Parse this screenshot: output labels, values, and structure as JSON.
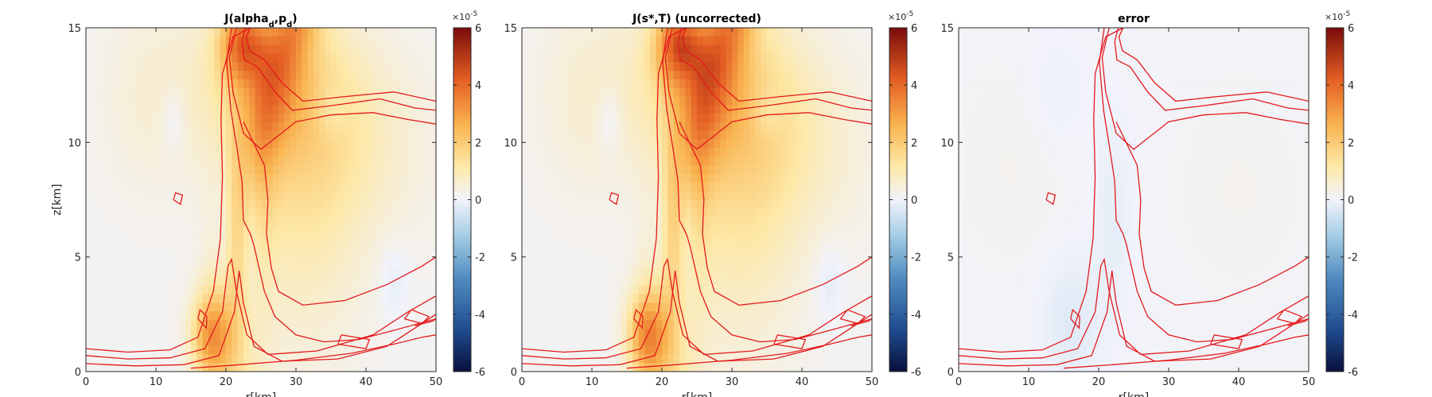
{
  "chart_data": [
    {
      "type": "heatmap",
      "title": "J(alpha_d,p_d)",
      "title_parts": [
        "J(alpha",
        "d",
        ",p",
        "d",
        ")"
      ],
      "xlabel": "r[km]",
      "ylabel": "z[km]",
      "xlim": [
        0,
        50
      ],
      "ylim": [
        0,
        15
      ],
      "xticks": [
        0,
        10,
        20,
        30,
        40,
        50
      ],
      "yticks": [
        0,
        5,
        10,
        15
      ],
      "colorbar": {
        "ticks": [
          -6,
          -4,
          -2,
          0,
          2,
          4,
          6
        ],
        "multiplier": "×10",
        "exponent": "-5",
        "range": [
          -6,
          6
        ]
      },
      "field_strength": 1.0
    },
    {
      "type": "heatmap",
      "title": "J(s*,T) (uncorrected)",
      "xlabel": "r[km]",
      "ylabel": "",
      "xlim": [
        0,
        50
      ],
      "ylim": [
        0,
        15
      ],
      "xticks": [
        0,
        10,
        20,
        30,
        40,
        50
      ],
      "yticks": [
        0,
        5,
        10,
        15
      ],
      "colorbar": {
        "ticks": [
          -6,
          -4,
          -2,
          0,
          2,
          4,
          6
        ],
        "multiplier": "×10",
        "exponent": "-5",
        "range": [
          -6,
          6
        ]
      },
      "field_strength": 1.08
    },
    {
      "type": "heatmap",
      "title": "error",
      "xlabel": "r[km]",
      "ylabel": "",
      "xlim": [
        0,
        50
      ],
      "ylim": [
        0,
        15
      ],
      "xticks": [
        0,
        10,
        20,
        30,
        40,
        50
      ],
      "yticks": [
        0,
        5,
        10,
        15
      ],
      "colorbar": {
        "ticks": [
          -6,
          -4,
          -2,
          0,
          2,
          4,
          6
        ],
        "multiplier": "×10",
        "exponent": "-5",
        "range": [
          -6,
          6
        ]
      },
      "field_strength": 0.08
    }
  ],
  "contours": {
    "color": "#e31a1c",
    "curves": [
      [
        [
          0,
          1.0
        ],
        [
          6,
          0.85
        ],
        [
          12,
          0.95
        ],
        [
          16,
          1.5
        ],
        [
          18.2,
          3.5
        ],
        [
          19.2,
          5.8
        ],
        [
          19.5,
          8.5
        ],
        [
          19.3,
          11
        ],
        [
          19.5,
          13
        ],
        [
          21,
          14.6
        ],
        [
          23.5,
          15
        ]
      ],
      [
        [
          0,
          0.7
        ],
        [
          6,
          0.55
        ],
        [
          12,
          0.6
        ],
        [
          17,
          1.0
        ],
        [
          19.5,
          2.6
        ],
        [
          20.3,
          4.6
        ],
        [
          20.8,
          4.9
        ],
        [
          21.5,
          3.5
        ],
        [
          23,
          1.6
        ],
        [
          26,
          0.75
        ],
        [
          33,
          0.9
        ],
        [
          41,
          1.6
        ],
        [
          46,
          2.6
        ],
        [
          50,
          3.3
        ]
      ],
      [
        [
          0,
          0.35
        ],
        [
          7,
          0.25
        ],
        [
          14,
          0.3
        ],
        [
          19,
          0.7
        ],
        [
          21.2,
          2.6
        ],
        [
          21.9,
          4.4
        ],
        [
          22.5,
          3.0
        ],
        [
          24,
          1.1
        ],
        [
          28,
          0.45
        ],
        [
          36,
          0.55
        ],
        [
          43,
          1.1
        ],
        [
          47,
          1.9
        ],
        [
          50,
          2.5
        ]
      ],
      [
        [
          21.5,
          15
        ],
        [
          20.5,
          13.7
        ],
        [
          21,
          12.2
        ],
        [
          22.5,
          10.4
        ],
        [
          25,
          9.7
        ],
        [
          27.5,
          10.3
        ],
        [
          30,
          10.9
        ],
        [
          35,
          11.2
        ],
        [
          41,
          11.3
        ],
        [
          46,
          11.0
        ],
        [
          50,
          10.8
        ]
      ],
      [
        [
          20.8,
          15
        ],
        [
          20.1,
          13.5
        ],
        [
          20.7,
          11.4
        ],
        [
          21.6,
          9.7
        ],
        [
          22.3,
          8.3
        ],
        [
          22.5,
          6.6
        ],
        [
          23.5,
          6
        ],
        [
          24,
          5.5
        ],
        [
          25.5,
          3.5
        ],
        [
          27,
          2.4
        ],
        [
          30,
          1.6
        ],
        [
          34,
          1.3
        ],
        [
          39,
          1.4
        ],
        [
          44,
          1.8
        ],
        [
          50,
          2.3
        ]
      ],
      [
        [
          22.8,
          15
        ],
        [
          22.3,
          14.4
        ],
        [
          22.6,
          13.6
        ],
        [
          24.5,
          13.3
        ],
        [
          27,
          12.2
        ],
        [
          29.5,
          11.4
        ],
        [
          35,
          11.6
        ],
        [
          42,
          11.9
        ],
        [
          47,
          11.5
        ],
        [
          50,
          11.4
        ]
      ],
      [
        [
          23.5,
          15
        ],
        [
          22.9,
          14.6
        ],
        [
          23.4,
          14
        ],
        [
          25.5,
          13.6
        ],
        [
          28,
          12.6
        ],
        [
          31,
          11.8
        ],
        [
          37,
          12.0
        ],
        [
          44,
          12.2
        ],
        [
          50,
          11.8
        ]
      ],
      [
        [
          22.5,
          10.9
        ],
        [
          25.5,
          9
        ],
        [
          26,
          7.5
        ],
        [
          25.8,
          6
        ],
        [
          26.5,
          4.5
        ],
        [
          27.5,
          3.5
        ],
        [
          31,
          2.9
        ],
        [
          37,
          3.1
        ],
        [
          43,
          3.8
        ],
        [
          48,
          4.6
        ],
        [
          50,
          5
        ]
      ],
      [
        [
          15,
          0.15
        ],
        [
          22,
          0.3
        ],
        [
          30,
          0.5
        ],
        [
          38,
          0.8
        ],
        [
          44,
          1.2
        ],
        [
          48,
          1.5
        ],
        [
          50,
          1.6
        ]
      ],
      [
        [
          47,
          2
        ],
        [
          49.5,
          2.2
        ],
        [
          50,
          2.3
        ]
      ]
    ],
    "islands": [
      [
        [
          12.5,
          7.5
        ],
        [
          13.5,
          7.3
        ],
        [
          13.8,
          7.7
        ],
        [
          12.8,
          7.8
        ],
        [
          12.5,
          7.5
        ]
      ],
      [
        [
          16,
          2.3
        ],
        [
          17.2,
          1.9
        ],
        [
          17.3,
          2.4
        ],
        [
          16.3,
          2.7
        ],
        [
          16,
          2.3
        ]
      ],
      [
        [
          36,
          1.2
        ],
        [
          40,
          1.0
        ],
        [
          40.5,
          1.4
        ],
        [
          36.5,
          1.6
        ],
        [
          36,
          1.2
        ]
      ],
      [
        [
          45.5,
          2.3
        ],
        [
          48,
          2.1
        ],
        [
          49,
          2.4
        ],
        [
          46.5,
          2.7
        ],
        [
          45.5,
          2.3
        ]
      ]
    ]
  }
}
